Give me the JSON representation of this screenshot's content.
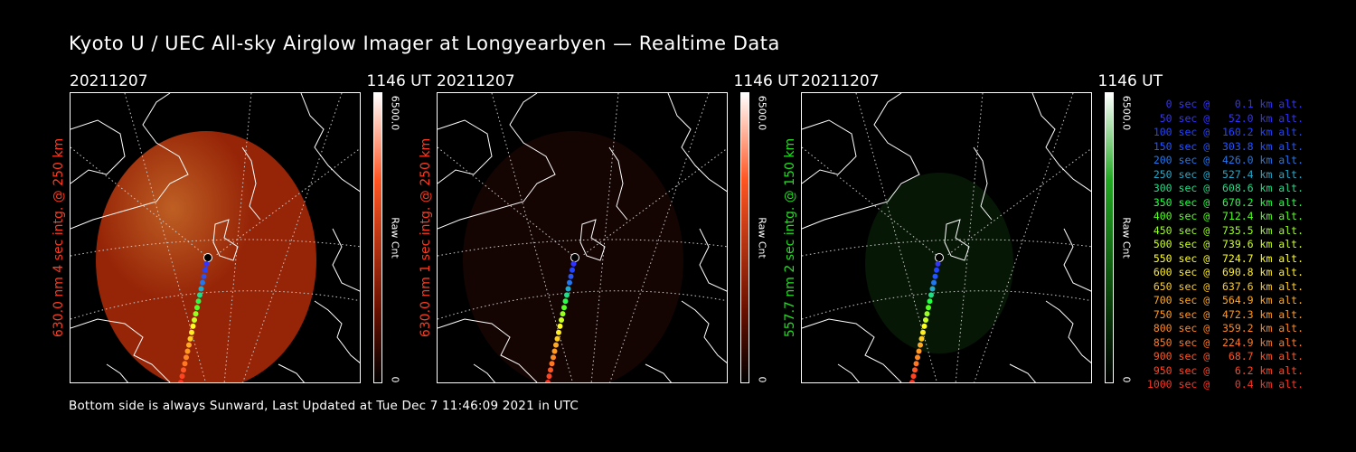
{
  "title": "Kyoto U / UEC All-sky Airglow Imager at Longyearbyen — Realtime Data",
  "panels": [
    {
      "date": "20211207",
      "time": "1146 UT",
      "side_label": "630.0 nm 4 sec intg. @ 250 km",
      "label_color": "#ff3b1f",
      "cbar_max": "6500.0",
      "cbar_unit": "Raw Cnt",
      "cbar_min": "0",
      "glow_color": "#b02a08",
      "glow_level": 0.85
    },
    {
      "date": "20211207",
      "time": "1146 UT",
      "side_label": "630.0 nm 1 sec intg. @ 250 km",
      "label_color": "#ff3b1f",
      "cbar_max": "6500.0",
      "cbar_unit": "Raw Cnt",
      "cbar_min": "0",
      "glow_color": "#3a0d06",
      "glow_level": 0.35
    },
    {
      "date": "20211207",
      "time": "1146 UT",
      "side_label": "557.7 nm 2 sec intg. @ 150 km",
      "label_color": "#22dd22",
      "cbar_max": "6500.0",
      "cbar_unit": "Raw Cnt",
      "cbar_min": "0",
      "glow_color": "#0f3a0f",
      "glow_level": 0.4
    }
  ],
  "legend": [
    {
      "text": "0 sec @    0.1 km alt.",
      "color": "#3333ff"
    },
    {
      "text": "50 sec @   52.0 km alt.",
      "color": "#3333ff"
    },
    {
      "text": "100 sec @  160.2 km alt.",
      "color": "#2244ff"
    },
    {
      "text": "150 sec @  303.8 km alt.",
      "color": "#2255ff"
    },
    {
      "text": "200 sec @  426.0 km alt.",
      "color": "#2277ee"
    },
    {
      "text": "250 sec @  527.4 km alt.",
      "color": "#22aacc"
    },
    {
      "text": "300 sec @  608.6 km alt.",
      "color": "#22dd88"
    },
    {
      "text": "350 sec @  670.2 km alt.",
      "color": "#22ff44"
    },
    {
      "text": "400 sec @  712.4 km alt.",
      "color": "#55ff22"
    },
    {
      "text": "450 sec @  735.5 km alt.",
      "color": "#99ff22"
    },
    {
      "text": "500 sec @  739.6 km alt.",
      "color": "#ccff22"
    },
    {
      "text": "550 sec @  724.7 km alt.",
      "color": "#ffff22"
    },
    {
      "text": "600 sec @  690.8 km alt.",
      "color": "#ffee22"
    },
    {
      "text": "650 sec @  637.6 km alt.",
      "color": "#ffcc22"
    },
    {
      "text": "700 sec @  564.9 km alt.",
      "color": "#ffaa22"
    },
    {
      "text": "750 sec @  472.3 km alt.",
      "color": "#ff9922"
    },
    {
      "text": "800 sec @  359.2 km alt.",
      "color": "#ff8822"
    },
    {
      "text": "850 sec @  224.9 km alt.",
      "color": "#ff7722"
    },
    {
      "text": "900 sec @   68.7 km alt.",
      "color": "#ff5522"
    },
    {
      "text": "950 sec @    6.2 km alt.",
      "color": "#ff4422"
    },
    {
      "text": "1000 sec @    0.4 km alt.",
      "color": "#ff3322"
    }
  ],
  "footer": "Bottom side is always Sunward, Last Updated at Tue Dec  7 11:46:09 2021 in UTC"
}
